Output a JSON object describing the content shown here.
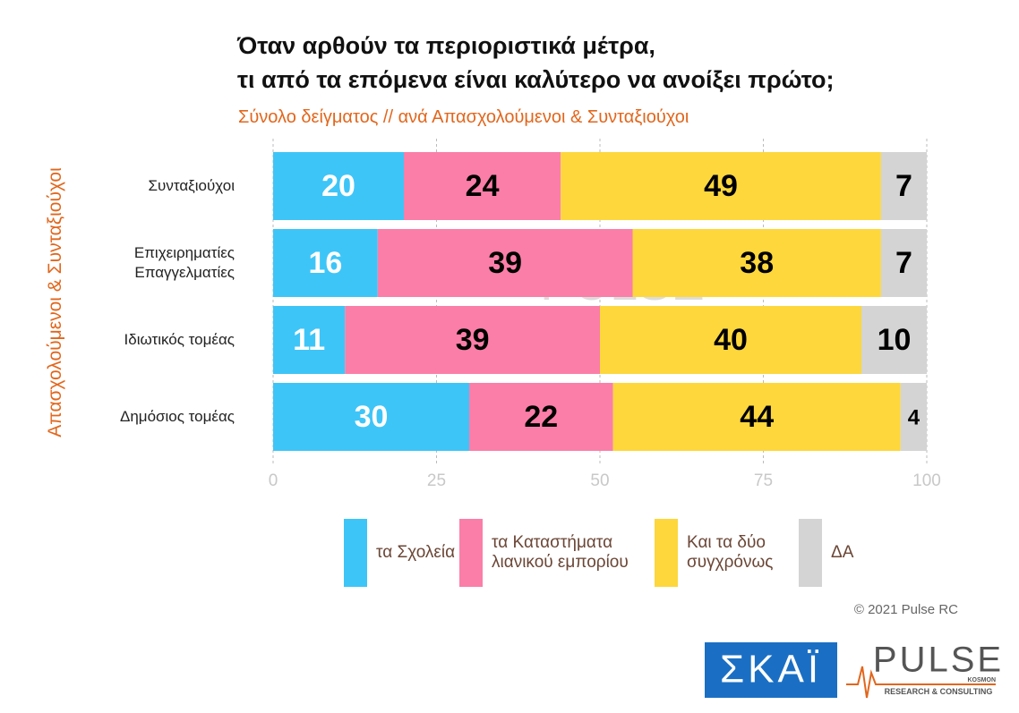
{
  "chart_data": {
    "type": "stacked-barh",
    "title_lines": [
      "Όταν αρθούν τα περιοριστικά μέτρα,",
      "τι από τα επόμενα είναι καλύτερο να ανοίξει πρώτο;"
    ],
    "subtitle": "Σύνολο δείγματος // ανά Απασχολούμενοι & Συνταξιούχοι",
    "y_label": "Απασχολούμενοι & Συνταξιούχοι",
    "categories": [
      "Συνταξιούχοι",
      "Επιχειρηματίες Επαγγελματίες",
      "Ιδιωτικός τομέας",
      "Δημόσιος τομέας"
    ],
    "series": [
      {
        "name": "τα Σχολεία",
        "color": "#3ec5f8",
        "label_color": "#ffffff",
        "values": [
          20,
          16,
          11,
          30
        ]
      },
      {
        "name": "τα Καταστήματα λιανικού εμπορίου",
        "color": "#fb7ea8",
        "label_color": "#000000",
        "values": [
          24,
          39,
          39,
          22
        ]
      },
      {
        "name": "Και τα δύο συγχρόνως",
        "color": "#fdd73c",
        "label_color": "#000000",
        "values": [
          49,
          38,
          40,
          44
        ]
      },
      {
        "name": "ΔΑ",
        "color": "#d4d4d4",
        "label_color": "#000000",
        "values": [
          7,
          7,
          10,
          4
        ]
      }
    ],
    "xlim": [
      0,
      100
    ],
    "xticks": [
      0,
      25,
      50,
      75,
      100
    ],
    "grid": true,
    "copyright": "© 2021 Pulse RC",
    "logos": {
      "skai": "ΣΚΑΪ",
      "pulse": "PULSE",
      "kosmon": "KOSMON",
      "pulse_tagline": "RESEARCH & CONSULTING"
    }
  }
}
